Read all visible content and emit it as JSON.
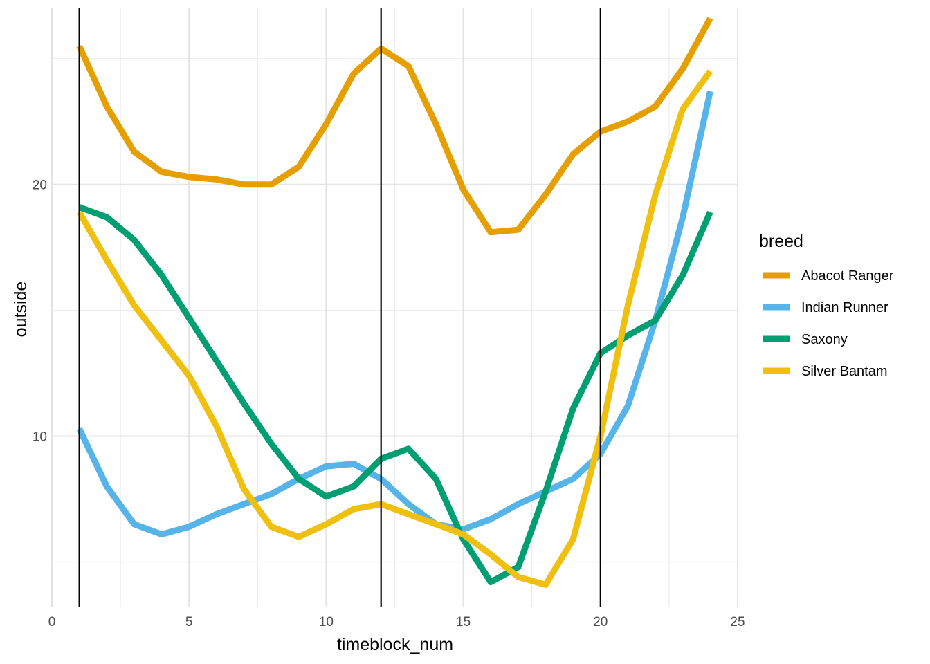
{
  "chart_data": {
    "type": "line",
    "title": "",
    "xlabel": "timeblock_num",
    "ylabel": "outside",
    "xlim": [
      0,
      25
    ],
    "ylim": [
      3.2,
      27
    ],
    "x_ticks": [
      0,
      5,
      10,
      15,
      20,
      25
    ],
    "y_ticks": [
      10,
      20
    ],
    "x_minor_ticks": [
      2.5,
      7.5,
      12.5,
      17.5,
      22.5
    ],
    "y_minor_ticks": [
      5,
      15,
      25
    ],
    "grid": true,
    "vlines": [
      1,
      12,
      20
    ],
    "legend": {
      "title": "breed",
      "position": "right"
    },
    "x": [
      1,
      2,
      3,
      4,
      5,
      6,
      7,
      8,
      9,
      10,
      11,
      12,
      13,
      14,
      15,
      16,
      17,
      18,
      19,
      20,
      21,
      22,
      23,
      24
    ],
    "series": [
      {
        "name": "Abacot Ranger",
        "color": "#E69F00",
        "values": [
          25.5,
          23.1,
          21.3,
          20.5,
          20.3,
          20.2,
          20.0,
          20.0,
          20.7,
          22.4,
          24.4,
          25.4,
          24.7,
          22.4,
          19.8,
          18.1,
          18.2,
          19.6,
          21.2,
          22.1,
          22.5,
          23.1,
          24.6,
          26.6
        ],
        "label_x": [
          1.0,
          2.0,
          3.0,
          4.0,
          5.0,
          6.0,
          7.0,
          8.0,
          9.0,
          10.0,
          11.0,
          12.0,
          13.0,
          14.0,
          15.0,
          16.0,
          17.0,
          18.0,
          19.0,
          20.0,
          21.0,
          22.0,
          23.0,
          24.0
        ]
      },
      {
        "name": "Indian Runner",
        "color": "#56B4E9",
        "values": [
          10.3,
          8.0,
          6.5,
          6.1,
          6.4,
          6.9,
          7.3,
          7.7,
          8.3,
          8.8,
          8.9,
          8.3,
          7.3,
          6.5,
          6.3,
          6.7,
          7.3,
          7.8,
          8.3,
          9.3,
          11.2,
          14.6,
          18.7,
          23.7
        ]
      },
      {
        "name": "Saxony",
        "color": "#009E73",
        "values": [
          19.1,
          18.7,
          17.8,
          16.4,
          14.7,
          13.0,
          11.3,
          9.7,
          8.3,
          7.6,
          8.0,
          9.1,
          9.5,
          8.3,
          5.9,
          4.2,
          4.8,
          7.8,
          11.1,
          13.3,
          14.0,
          14.6,
          16.4,
          18.9
        ]
      },
      {
        "name": "Silver Bantam",
        "color": "#F0C010",
        "values": [
          18.9,
          17.0,
          15.2,
          13.8,
          12.4,
          10.4,
          7.9,
          6.4,
          6.0,
          6.5,
          7.1,
          7.3,
          6.9,
          6.5,
          6.1,
          5.3,
          4.4,
          4.1,
          5.9,
          10.0,
          15.2,
          19.6,
          23.0,
          24.5
        ]
      }
    ]
  }
}
